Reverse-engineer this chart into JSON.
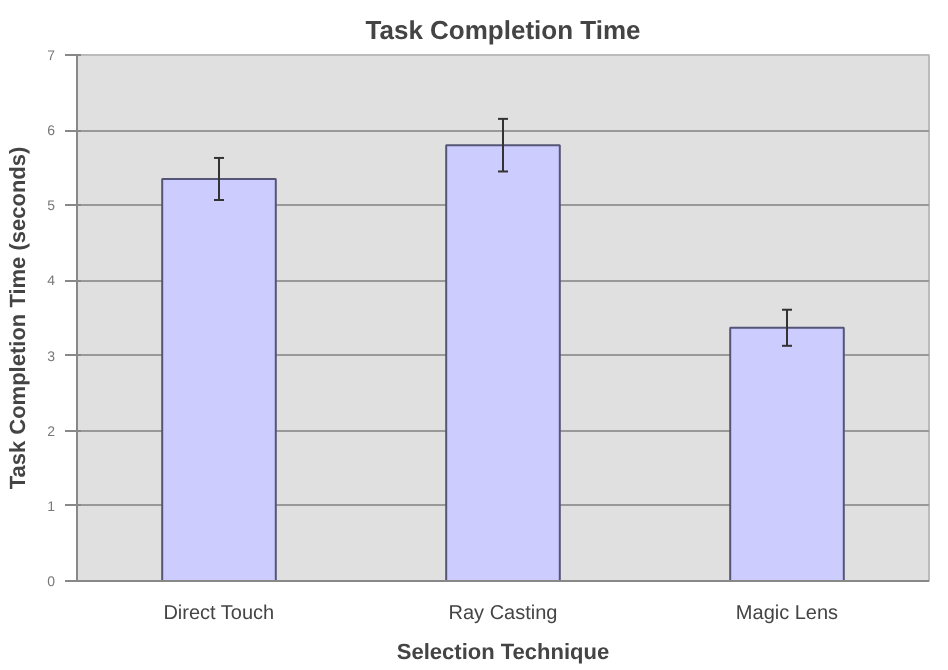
{
  "chart_data": {
    "type": "bar",
    "title": "Task Completion Time",
    "xlabel": "Selection Technique",
    "ylabel": "Task Completion Time (seconds)",
    "categories": [
      "Direct Touch",
      "Ray Casting",
      "Magic Lens"
    ],
    "values": [
      5.35,
      5.8,
      3.37
    ],
    "errors": [
      0.28,
      0.35,
      0.24
    ],
    "color": "#ccccff",
    "ylim": [
      0,
      7
    ],
    "yticks": [
      0,
      1,
      2,
      3,
      4,
      5,
      6,
      7
    ],
    "grid": "y"
  }
}
